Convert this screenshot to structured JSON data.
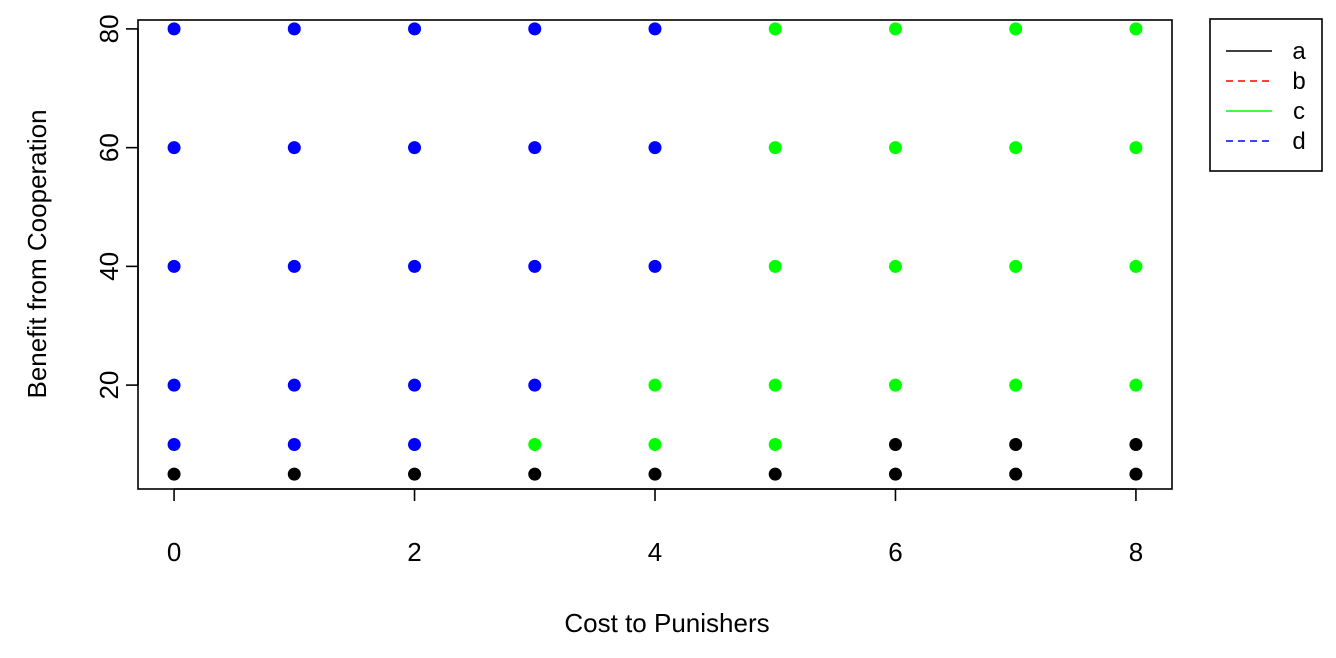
{
  "chart_data": {
    "type": "scatter",
    "xlabel": "Cost to Punishers",
    "ylabel": "Benefit from Cooperation",
    "xlim": [
      -0.3,
      8.3
    ],
    "ylim": [
      2.5,
      81.5
    ],
    "x_ticks": [
      0,
      2,
      4,
      6,
      8
    ],
    "y_ticks": [
      20,
      40,
      60,
      80
    ],
    "legend_position": "right",
    "legend": [
      {
        "label": "a",
        "color": "#000000",
        "linestyle": "solid"
      },
      {
        "label": "b",
        "color": "#ff0000",
        "linestyle": "dashed"
      },
      {
        "label": "c",
        "color": "#00ff00",
        "linestyle": "solid"
      },
      {
        "label": "d",
        "color": "#0000ff",
        "linestyle": "dashed"
      }
    ],
    "series": [
      {
        "name": "a",
        "color": "#000000",
        "points": [
          [
            0,
            5
          ],
          [
            1,
            5
          ],
          [
            2,
            5
          ],
          [
            3,
            5
          ],
          [
            4,
            5
          ],
          [
            5,
            5
          ],
          [
            6,
            5
          ],
          [
            7,
            5
          ],
          [
            8,
            5
          ],
          [
            6,
            10
          ],
          [
            7,
            10
          ],
          [
            8,
            10
          ]
        ]
      },
      {
        "name": "c",
        "color": "#00ff00",
        "points": [
          [
            3,
            10
          ],
          [
            4,
            10
          ],
          [
            5,
            10
          ],
          [
            4,
            20
          ],
          [
            5,
            20
          ],
          [
            6,
            20
          ],
          [
            7,
            20
          ],
          [
            8,
            20
          ],
          [
            5,
            40
          ],
          [
            6,
            40
          ],
          [
            7,
            40
          ],
          [
            8,
            40
          ],
          [
            5,
            60
          ],
          [
            6,
            60
          ],
          [
            7,
            60
          ],
          [
            8,
            60
          ],
          [
            5,
            80
          ],
          [
            6,
            80
          ],
          [
            7,
            80
          ],
          [
            8,
            80
          ]
        ]
      },
      {
        "name": "d",
        "color": "#0000ff",
        "points": [
          [
            0,
            10
          ],
          [
            1,
            10
          ],
          [
            2,
            10
          ],
          [
            0,
            20
          ],
          [
            1,
            20
          ],
          [
            2,
            20
          ],
          [
            3,
            20
          ],
          [
            0,
            40
          ],
          [
            1,
            40
          ],
          [
            2,
            40
          ],
          [
            3,
            40
          ],
          [
            4,
            40
          ],
          [
            0,
            60
          ],
          [
            1,
            60
          ],
          [
            2,
            60
          ],
          [
            3,
            60
          ],
          [
            4,
            60
          ],
          [
            0,
            80
          ],
          [
            1,
            80
          ],
          [
            2,
            80
          ],
          [
            3,
            80
          ],
          [
            4,
            80
          ]
        ]
      }
    ]
  }
}
